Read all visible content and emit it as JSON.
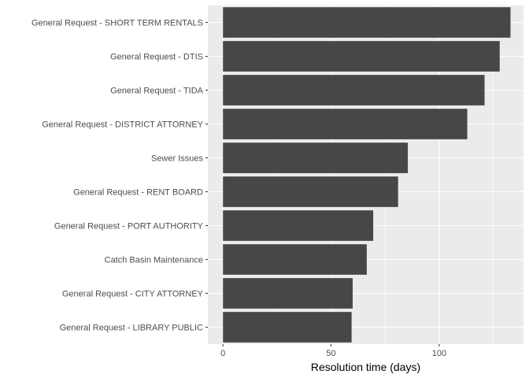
{
  "chart_data": {
    "type": "bar",
    "orientation": "horizontal",
    "title": "",
    "xlabel": "Resolution time (days)",
    "ylabel": "",
    "xlim": [
      -7,
      139
    ],
    "xticks": [
      0,
      50,
      100
    ],
    "grid": true,
    "colors": {
      "bar": "#474747",
      "panel": "#ebebeb",
      "grid": "#ffffff",
      "background": "#ffffff"
    },
    "categories": [
      "General Request - SHORT TERM RENTALS",
      "General Request - DTIS",
      "General Request - TIDA",
      "General Request - DISTRICT ATTORNEY",
      "Sewer Issues",
      "General Request - RENT BOARD",
      "General Request - PORT AUTHORITY",
      "Catch Basin Maintenance",
      "General Request - CITY ATTORNEY",
      "General Request - LIBRARY PUBLIC"
    ],
    "values": [
      133,
      128,
      121,
      113,
      85.5,
      81,
      69.5,
      66.5,
      60,
      59.5
    ]
  }
}
